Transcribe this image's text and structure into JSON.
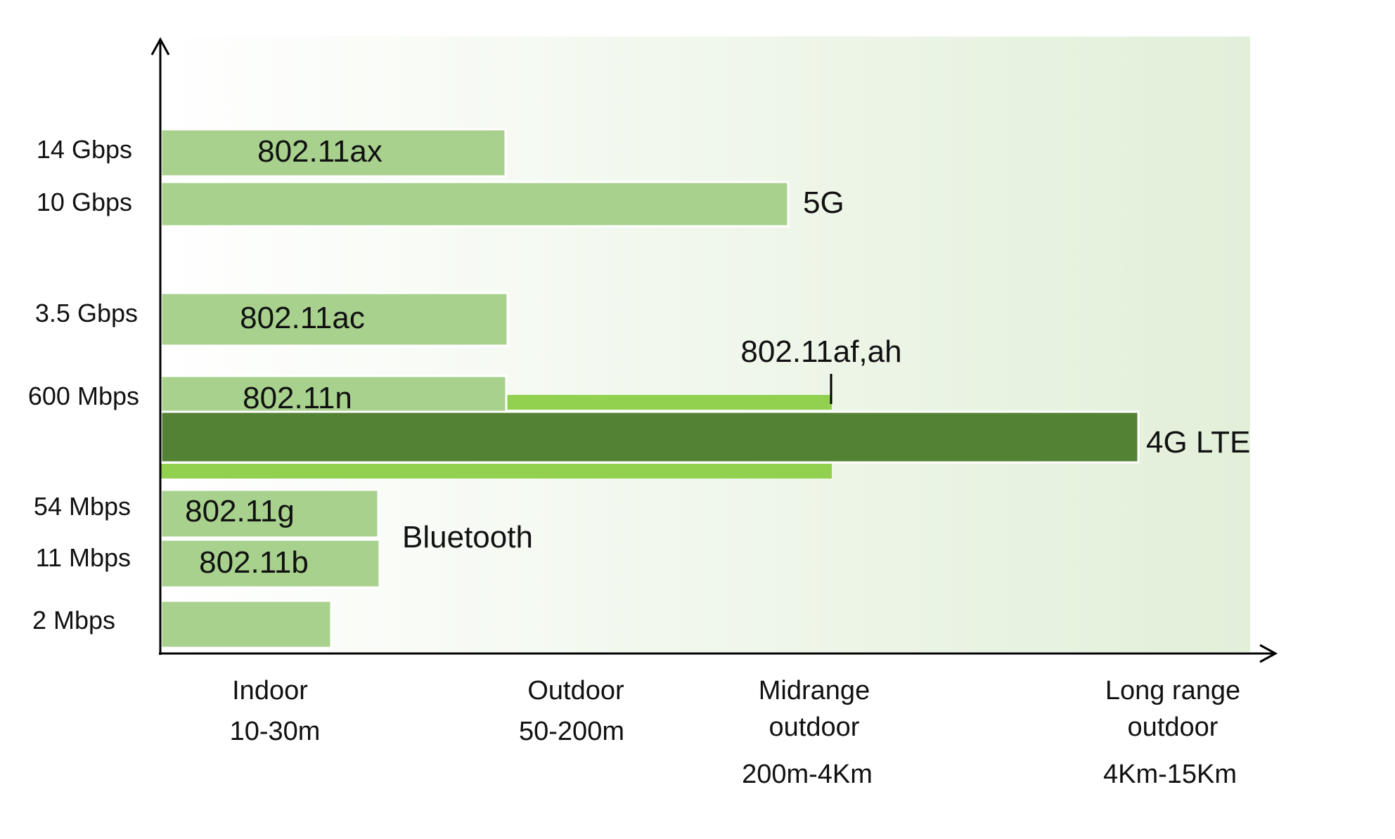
{
  "colors": {
    "bar_light": "#a8d18e",
    "bar_dark": "#548235",
    "bar_bright": "#92d050",
    "background_gradient_end": "#e2efd9",
    "axis": "#000000"
  },
  "y_axis": {
    "ticks": [
      "14 Gbps",
      "10 Gbps",
      "3.5 Gbps",
      "600 Mbps",
      "54 Mbps",
      "11 Mbps",
      "2 Mbps"
    ]
  },
  "x_axis": {
    "ranges": [
      {
        "line1": "Indoor",
        "line2": "",
        "line3": "10-30m"
      },
      {
        "line1": "Outdoor",
        "line2": "",
        "line3": "50-200m"
      },
      {
        "line1": "Midrange",
        "line2": "outdoor",
        "line3": "200m-4Km"
      },
      {
        "line1": "Long range",
        "line2": "outdoor",
        "line3": "4Km-15Km"
      }
    ]
  },
  "technologies": [
    {
      "label": "802.11ax",
      "rate": "14 Gbps",
      "reach": "Outdoor"
    },
    {
      "label": "5G",
      "rate": "10 Gbps",
      "reach": "Midrange outdoor"
    },
    {
      "label": "802.11ac",
      "rate": "3.5 Gbps",
      "reach": "Outdoor"
    },
    {
      "label": "802.11af,ah",
      "rate": "600 Mbps",
      "reach": "Midrange outdoor"
    },
    {
      "label": "802.11n",
      "rate": "600 Mbps",
      "reach": "Outdoor"
    },
    {
      "label": "4G LTE",
      "rate": "600 Mbps",
      "reach": "Long range outdoor"
    },
    {
      "label": "802.11g",
      "rate": "54 Mbps",
      "reach": "Indoor"
    },
    {
      "label": "802.11b",
      "rate": "11 Mbps",
      "reach": "Indoor"
    },
    {
      "label": "",
      "rate": "2 Mbps",
      "reach": "Indoor"
    }
  ],
  "bluetooth_label": "Bluetooth"
}
